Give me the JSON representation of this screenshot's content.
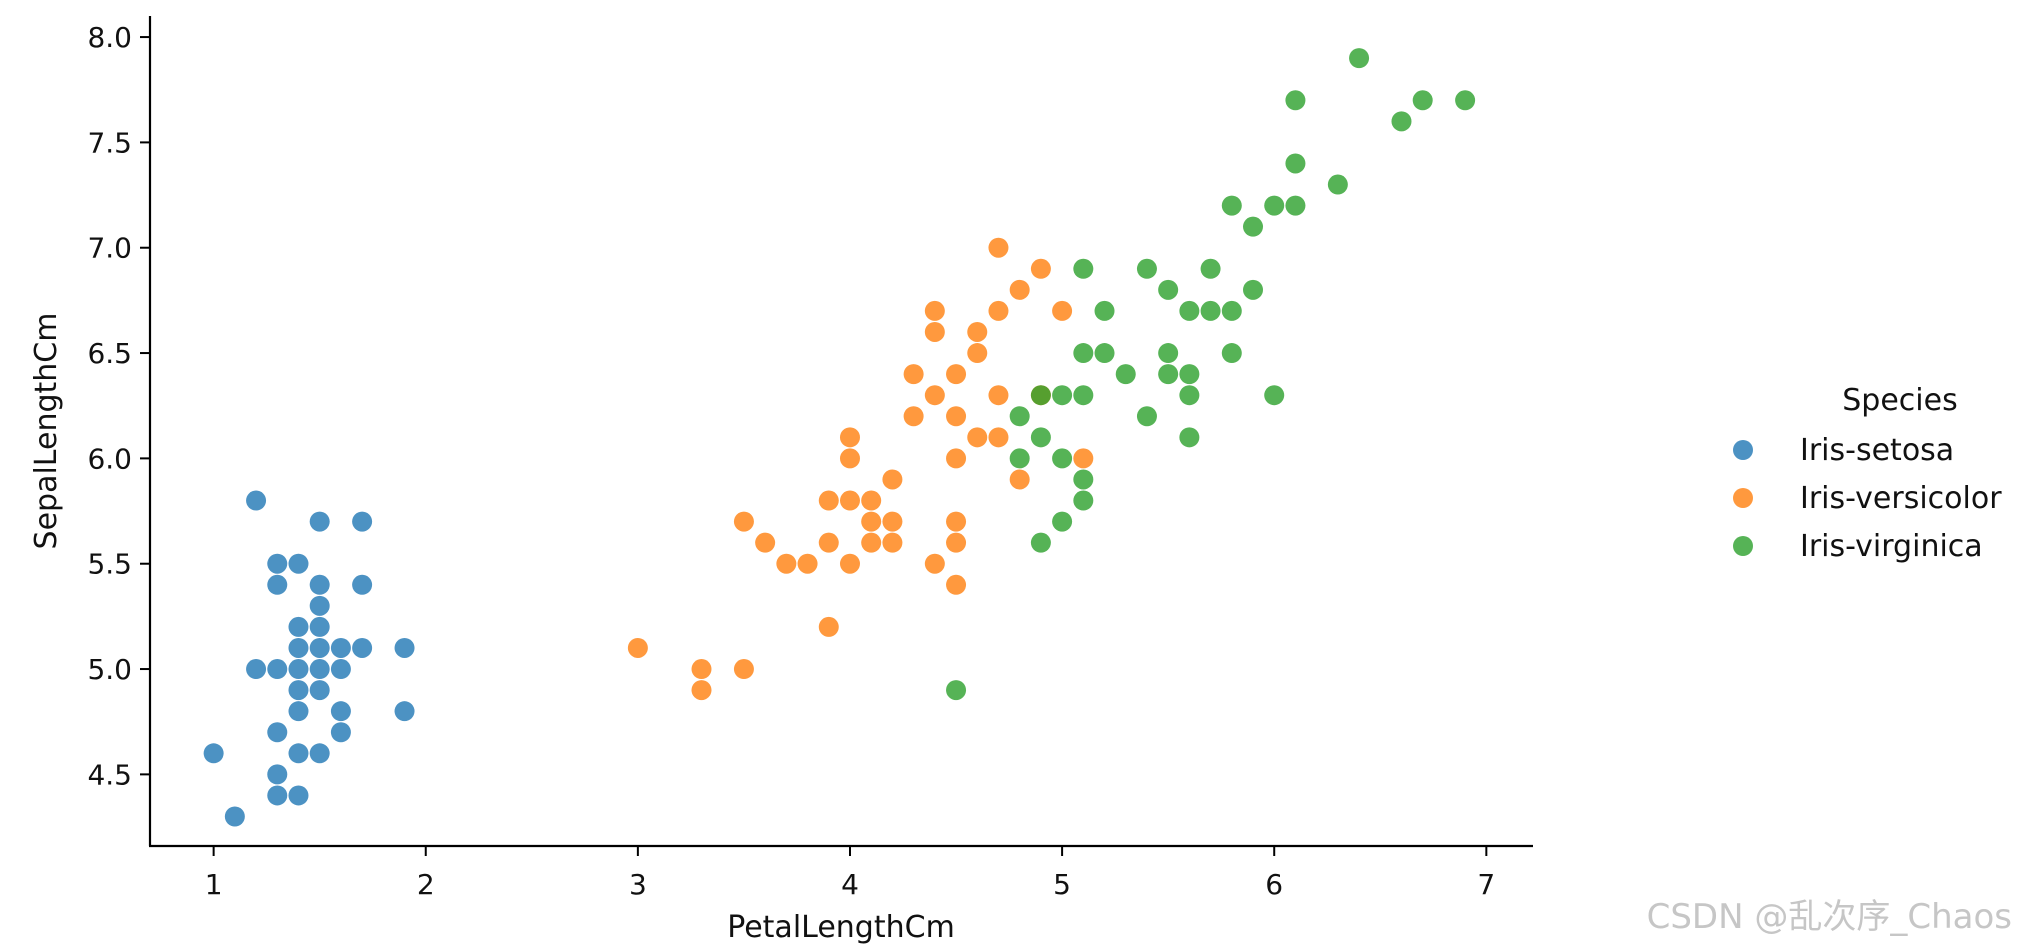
{
  "chart_data": {
    "type": "scatter",
    "title": "",
    "xlabel": "PetalLengthCm",
    "ylabel": "SepalLengthCm",
    "xlim": [
      0.7,
      7.22
    ],
    "ylim": [
      4.16,
      8.1
    ],
    "xticks": [
      1,
      2,
      3,
      4,
      5,
      6,
      7
    ],
    "xtick_labels": [
      "1",
      "2",
      "3",
      "4",
      "5",
      "6",
      "7"
    ],
    "yticks": [
      4.5,
      5.0,
      5.5,
      6.0,
      6.5,
      7.0,
      7.5,
      8.0
    ],
    "ytick_labels": [
      "4.5",
      "5.0",
      "5.5",
      "6.0",
      "6.5",
      "7.0",
      "7.5",
      "8.0"
    ],
    "grid": false,
    "legend": {
      "title": "Species",
      "position": "right"
    },
    "series": [
      {
        "name": "Iris-setosa",
        "color": "#1f77b4",
        "points": [
          [
            1.0,
            4.6
          ],
          [
            1.1,
            4.3
          ],
          [
            1.2,
            5.8
          ],
          [
            1.2,
            5.0
          ],
          [
            1.3,
            5.5
          ],
          [
            1.3,
            5.4
          ],
          [
            1.3,
            5.0
          ],
          [
            1.3,
            4.7
          ],
          [
            1.3,
            4.5
          ],
          [
            1.3,
            4.4
          ],
          [
            1.4,
            5.5
          ],
          [
            1.4,
            5.2
          ],
          [
            1.4,
            5.1
          ],
          [
            1.4,
            5.0
          ],
          [
            1.4,
            4.9
          ],
          [
            1.4,
            4.8
          ],
          [
            1.4,
            4.6
          ],
          [
            1.4,
            4.4
          ],
          [
            1.5,
            5.7
          ],
          [
            1.5,
            5.4
          ],
          [
            1.5,
            5.3
          ],
          [
            1.5,
            5.2
          ],
          [
            1.5,
            5.1
          ],
          [
            1.5,
            5.0
          ],
          [
            1.5,
            4.9
          ],
          [
            1.5,
            4.6
          ],
          [
            1.6,
            5.1
          ],
          [
            1.6,
            5.0
          ],
          [
            1.6,
            4.8
          ],
          [
            1.6,
            4.7
          ],
          [
            1.7,
            5.7
          ],
          [
            1.7,
            5.4
          ],
          [
            1.7,
            5.1
          ],
          [
            1.9,
            5.1
          ],
          [
            1.9,
            4.8
          ]
        ]
      },
      {
        "name": "Iris-versicolor",
        "color": "#ff7f0e",
        "points": [
          [
            3.0,
            5.1
          ],
          [
            3.3,
            5.0
          ],
          [
            3.3,
            4.9
          ],
          [
            3.5,
            5.7
          ],
          [
            3.5,
            5.0
          ],
          [
            3.6,
            5.6
          ],
          [
            3.7,
            5.5
          ],
          [
            3.8,
            5.5
          ],
          [
            3.9,
            5.8
          ],
          [
            3.9,
            5.6
          ],
          [
            3.9,
            5.2
          ],
          [
            4.0,
            6.1
          ],
          [
            4.0,
            6.0
          ],
          [
            4.0,
            5.8
          ],
          [
            4.0,
            5.5
          ],
          [
            4.1,
            5.8
          ],
          [
            4.1,
            5.7
          ],
          [
            4.1,
            5.6
          ],
          [
            4.2,
            5.9
          ],
          [
            4.2,
            5.7
          ],
          [
            4.2,
            5.6
          ],
          [
            4.3,
            6.4
          ],
          [
            4.3,
            6.2
          ],
          [
            4.4,
            6.7
          ],
          [
            4.4,
            6.6
          ],
          [
            4.4,
            6.3
          ],
          [
            4.4,
            5.5
          ],
          [
            4.5,
            6.4
          ],
          [
            4.5,
            6.2
          ],
          [
            4.5,
            6.0
          ],
          [
            4.5,
            5.7
          ],
          [
            4.5,
            5.6
          ],
          [
            4.5,
            5.4
          ],
          [
            4.6,
            6.6
          ],
          [
            4.6,
            6.5
          ],
          [
            4.6,
            6.1
          ],
          [
            4.7,
            7.0
          ],
          [
            4.7,
            6.7
          ],
          [
            4.7,
            6.3
          ],
          [
            4.7,
            6.1
          ],
          [
            4.8,
            6.8
          ],
          [
            4.8,
            5.9
          ],
          [
            4.9,
            6.9
          ],
          [
            4.9,
            6.3
          ],
          [
            5.0,
            6.7
          ],
          [
            5.1,
            6.0
          ]
        ]
      },
      {
        "name": "Iris-virginica",
        "color": "#2ca02c",
        "points": [
          [
            4.5,
            4.9
          ],
          [
            4.8,
            6.2
          ],
          [
            4.8,
            6.0
          ],
          [
            4.9,
            6.3
          ],
          [
            4.9,
            6.1
          ],
          [
            4.9,
            5.6
          ],
          [
            5.0,
            6.3
          ],
          [
            5.0,
            6.0
          ],
          [
            5.0,
            5.7
          ],
          [
            5.1,
            6.9
          ],
          [
            5.1,
            6.5
          ],
          [
            5.1,
            6.3
          ],
          [
            5.1,
            5.9
          ],
          [
            5.1,
            5.8
          ],
          [
            5.2,
            6.7
          ],
          [
            5.2,
            6.5
          ],
          [
            5.3,
            6.4
          ],
          [
            5.4,
            6.9
          ],
          [
            5.4,
            6.2
          ],
          [
            5.5,
            6.8
          ],
          [
            5.5,
            6.5
          ],
          [
            5.5,
            6.4
          ],
          [
            5.6,
            6.7
          ],
          [
            5.6,
            6.4
          ],
          [
            5.6,
            6.3
          ],
          [
            5.6,
            6.1
          ],
          [
            5.7,
            6.9
          ],
          [
            5.7,
            6.7
          ],
          [
            5.8,
            7.2
          ],
          [
            5.8,
            6.7
          ],
          [
            5.8,
            6.5
          ],
          [
            5.9,
            7.1
          ],
          [
            5.9,
            6.8
          ],
          [
            6.0,
            7.2
          ],
          [
            6.0,
            6.3
          ],
          [
            6.1,
            7.7
          ],
          [
            6.1,
            7.4
          ],
          [
            6.1,
            7.2
          ],
          [
            6.3,
            7.3
          ],
          [
            6.4,
            7.9
          ],
          [
            6.6,
            7.6
          ],
          [
            6.7,
            7.7
          ],
          [
            6.9,
            7.7
          ]
        ]
      }
    ]
  },
  "watermark": "CSDN @乱次序_Chaos"
}
